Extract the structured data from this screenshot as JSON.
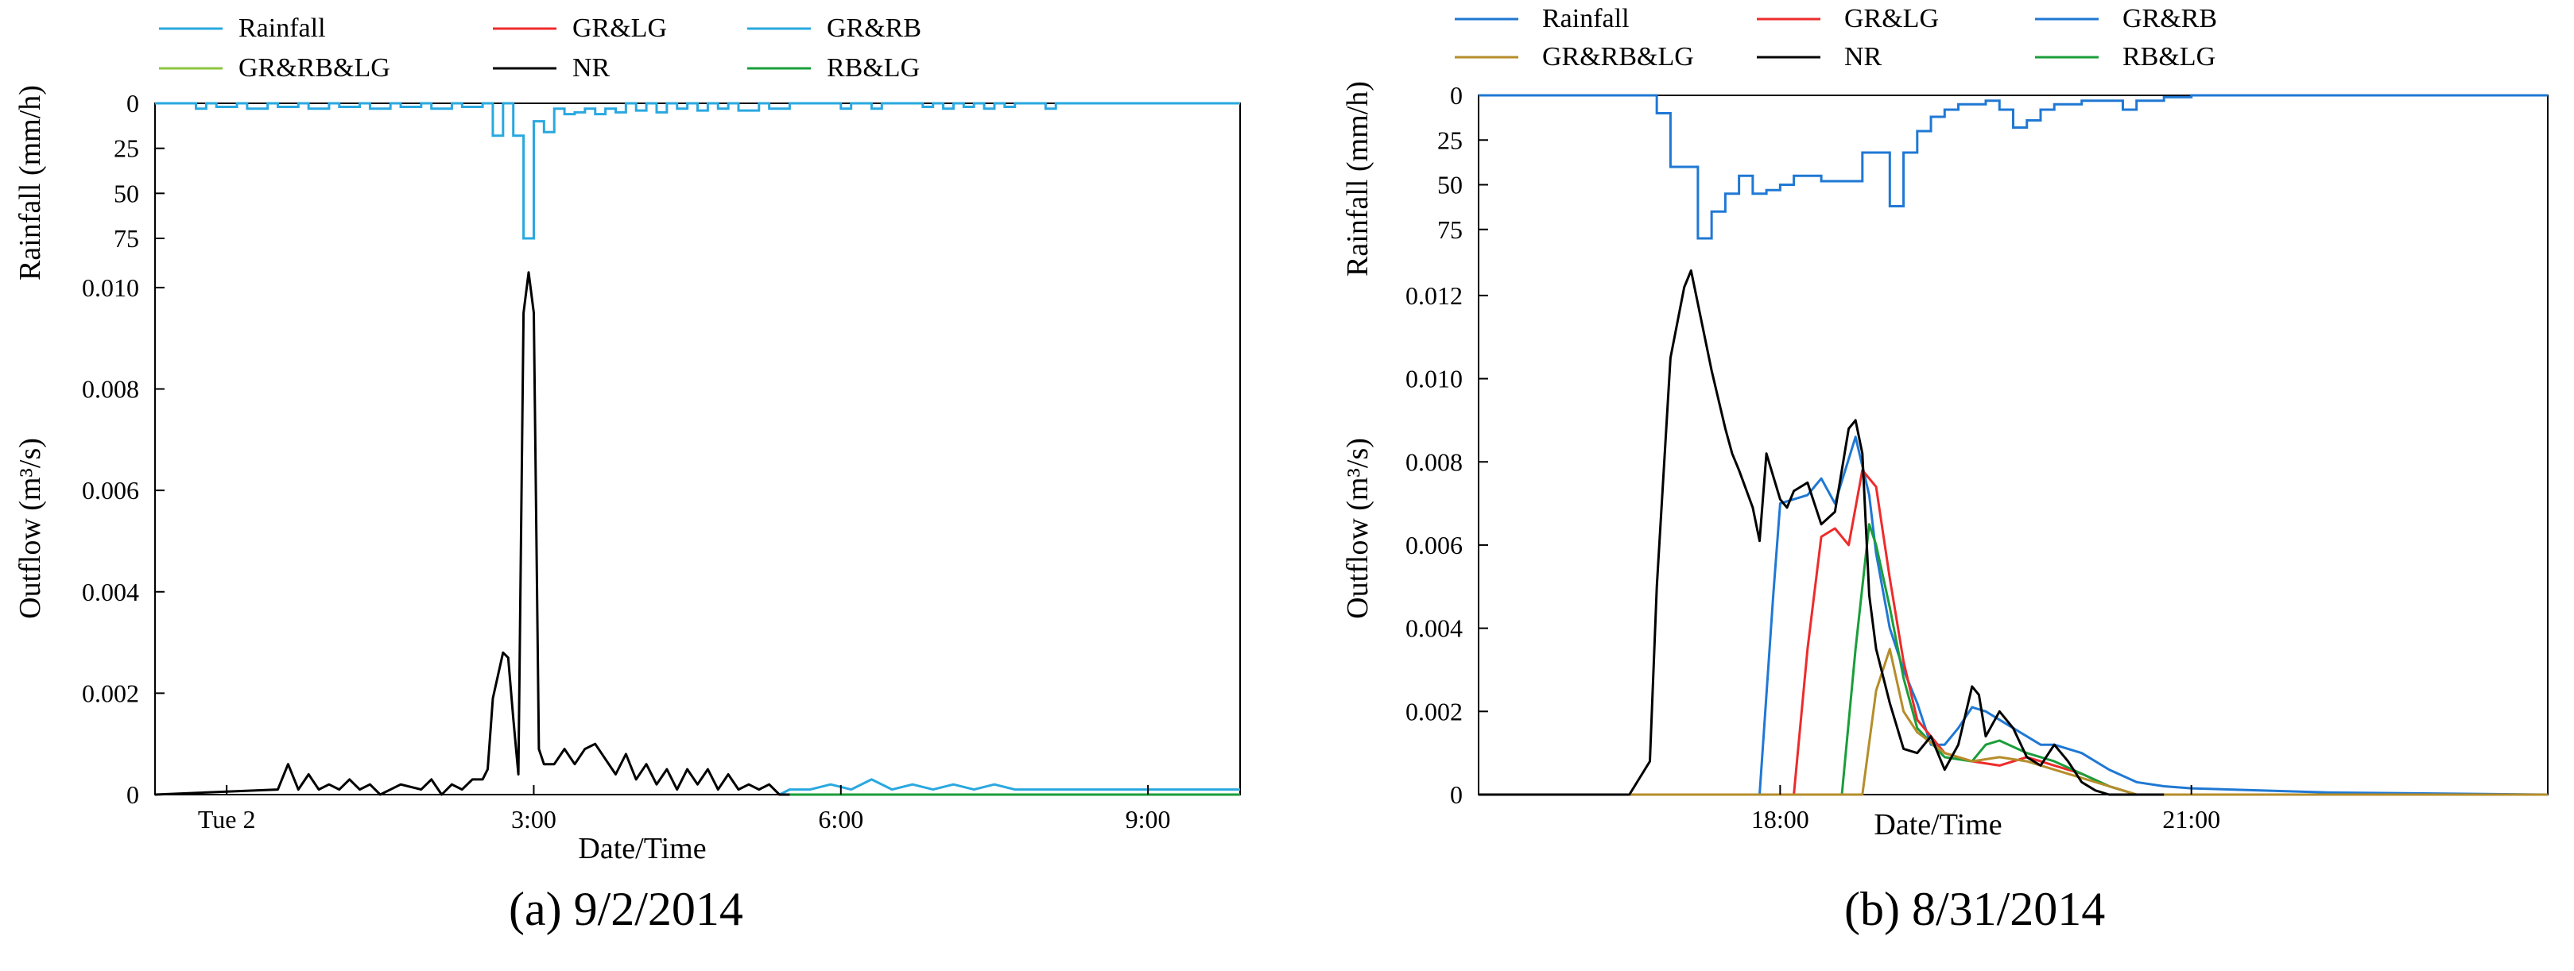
{
  "chart_data": [
    {
      "type": "line",
      "caption": "(a) 9/2/2014",
      "xlabel": "Date/Time",
      "x_ticks": [
        "Tue 2",
        "3:00",
        "6:00",
        "9:00"
      ],
      "x_tick_hours": [
        0,
        3,
        6,
        9
      ],
      "xlim_hours": [
        -0.7,
        9.9
      ],
      "legend": [
        {
          "name": "Rainfall",
          "color": "#29a8e0"
        },
        {
          "name": "GR&LG",
          "color": "#ee2b2b"
        },
        {
          "name": "GR&RB",
          "color": "#29a8e0"
        },
        {
          "name": "GR&RB&LG",
          "color": "#8cc63f"
        },
        {
          "name": "NR",
          "color": "#000000"
        },
        {
          "name": "RB&LG",
          "color": "#1a9e3a"
        }
      ],
      "rainfall": {
        "ylabel": "Rainfall (mm/h)",
        "yticks": [
          0,
          25,
          50,
          75
        ],
        "ylim": [
          0,
          75
        ],
        "inverted": true,
        "color": "#29a8e0",
        "x_hours": [
          -0.7,
          -0.3,
          -0.2,
          -0.1,
          0.1,
          0.2,
          0.4,
          0.5,
          0.7,
          0.8,
          1.0,
          1.1,
          1.3,
          1.4,
          1.6,
          1.7,
          1.9,
          2.0,
          2.2,
          2.3,
          2.5,
          2.6,
          2.7,
          2.8,
          2.9,
          3.0,
          3.1,
          3.2,
          3.3,
          3.4,
          3.5,
          3.6,
          3.7,
          3.8,
          3.9,
          4.0,
          4.1,
          4.2,
          4.3,
          4.4,
          4.5,
          4.6,
          4.7,
          4.8,
          4.9,
          5.0,
          5.2,
          5.3,
          5.5,
          5.6,
          6.0,
          6.1,
          6.3,
          6.4,
          6.8,
          6.9,
          7.0,
          7.1,
          7.2,
          7.3,
          7.4,
          7.5,
          7.6,
          7.7,
          8.0,
          8.1,
          9.9
        ],
        "values": [
          0,
          3,
          0,
          2,
          0,
          3,
          0,
          2,
          0,
          3,
          0,
          2,
          0,
          3,
          0,
          2,
          0,
          3,
          0,
          2,
          0,
          18,
          0,
          18,
          75,
          10,
          16,
          3,
          6,
          5,
          3,
          6,
          3,
          5,
          0,
          4,
          0,
          5,
          0,
          3,
          0,
          4,
          0,
          3,
          0,
          4,
          0,
          3,
          0,
          0,
          3,
          0,
          3,
          0,
          2,
          0,
          3,
          0,
          2,
          0,
          3,
          0,
          2,
          0,
          3,
          0,
          0
        ]
      },
      "outflow": {
        "ylabel": "Outflow (m³/s)",
        "yticks": [
          0,
          0.002,
          0.004,
          0.006,
          0.008,
          0.01
        ],
        "ylim": [
          0,
          0.0105
        ],
        "series": [
          {
            "name": "NR",
            "color": "#000000",
            "x_hours": [
              -0.7,
              0.5,
              0.6,
              0.7,
              0.8,
              0.9,
              1.0,
              1.1,
              1.2,
              1.3,
              1.4,
              1.5,
              1.7,
              1.9,
              2.0,
              2.1,
              2.2,
              2.3,
              2.4,
              2.5,
              2.55,
              2.6,
              2.7,
              2.75,
              2.8,
              2.85,
              2.9,
              2.95,
              3.0,
              3.05,
              3.1,
              3.2,
              3.3,
              3.4,
              3.5,
              3.6,
              3.7,
              3.8,
              3.9,
              4.0,
              4.1,
              4.2,
              4.3,
              4.4,
              4.5,
              4.6,
              4.7,
              4.8,
              4.9,
              5.0,
              5.1,
              5.2,
              5.3,
              5.4,
              5.5
            ],
            "values": [
              0,
              0.0001,
              0.0006,
              0.0001,
              0.0004,
              0.0001,
              0.0002,
              0.0001,
              0.0003,
              0.0001,
              0.0002,
              0,
              0.0002,
              0.0001,
              0.0003,
              0,
              0.0002,
              0.0001,
              0.0003,
              0.0003,
              0.0005,
              0.0019,
              0.0028,
              0.0027,
              0.0015,
              0.0004,
              0.0095,
              0.0103,
              0.0095,
              0.0009,
              0.0006,
              0.0006,
              0.0009,
              0.0006,
              0.0009,
              0.001,
              0.0007,
              0.0004,
              0.0008,
              0.0003,
              0.0006,
              0.0002,
              0.0005,
              0.0001,
              0.0005,
              0.0002,
              0.0005,
              0.0001,
              0.0004,
              0.0001,
              0.0002,
              0.0001,
              0.0002,
              0,
              0
            ]
          },
          {
            "name": "GR&RB",
            "color": "#29a8e0",
            "x_hours": [
              5.4,
              5.5,
              5.7,
              5.9,
              6.1,
              6.3,
              6.5,
              6.7,
              6.9,
              7.1,
              7.3,
              7.5,
              7.7,
              7.9,
              8.1,
              9.9
            ],
            "values": [
              0,
              0.0001,
              0.0001,
              0.0002,
              0.0001,
              0.0003,
              0.0001,
              0.0002,
              0.0001,
              0.0002,
              0.0001,
              0.0002,
              0.0001,
              0.0001,
              0.0001,
              0.0001
            ]
          },
          {
            "name": "RB&LG",
            "color": "#1a9e3a",
            "x_hours": [
              5.4,
              9.9
            ],
            "values": [
              0,
              0
            ]
          }
        ]
      }
    },
    {
      "type": "line",
      "caption": "(b) 8/31/2014",
      "xlabel": "Date/Time",
      "x_ticks": [
        "18:00",
        "21:00"
      ],
      "x_tick_hours": [
        18,
        21
      ],
      "xlim_hours": [
        15.8,
        23.6
      ],
      "legend": [
        {
          "name": "Rainfall",
          "color": "#1f78d4"
        },
        {
          "name": "GR&LG",
          "color": "#ee2b2b"
        },
        {
          "name": "GR&RB",
          "color": "#1f78d4"
        },
        {
          "name": "GR&RB&LG",
          "color": "#b58d2a"
        },
        {
          "name": "NR",
          "color": "#000000"
        },
        {
          "name": "RB&LG",
          "color": "#1a9e3a"
        }
      ],
      "rainfall": {
        "ylabel": "Rainfall (mm/h)",
        "yticks": [
          0,
          25,
          50,
          75
        ],
        "ylim": [
          0,
          80
        ],
        "inverted": true,
        "color": "#1f78d4",
        "x_hours": [
          15.8,
          17.1,
          17.2,
          17.4,
          17.5,
          17.6,
          17.7,
          17.8,
          17.9,
          18.0,
          18.1,
          18.3,
          18.6,
          18.8,
          18.9,
          19.0,
          19.1,
          19.2,
          19.3,
          19.5,
          19.6,
          19.7,
          19.8,
          19.9,
          20.0,
          20.2,
          20.3,
          20.5,
          20.6,
          20.8,
          21.0,
          23.6
        ],
        "values": [
          0,
          10,
          40,
          80,
          65,
          55,
          45,
          55,
          53,
          50,
          45,
          48,
          32,
          62,
          32,
          20,
          12,
          8,
          5,
          3,
          8,
          18,
          14,
          8,
          5,
          3,
          3,
          8,
          3,
          1,
          0,
          0
        ]
      },
      "outflow": {
        "ylabel": "Outflow (m³/s)",
        "yticks": [
          0,
          0.002,
          0.004,
          0.006,
          0.008,
          0.01,
          0.012
        ],
        "ylim": [
          0,
          0.0128
        ],
        "series": [
          {
            "name": "NR",
            "color": "#000000",
            "x_hours": [
              15.8,
              16.9,
              17.05,
              17.1,
              17.2,
              17.3,
              17.35,
              17.4,
              17.5,
              17.6,
              17.65,
              17.7,
              17.8,
              17.85,
              17.9,
              18.0,
              18.05,
              18.1,
              18.2,
              18.3,
              18.4,
              18.5,
              18.55,
              18.6,
              18.65,
              18.7,
              18.8,
              18.9,
              19.0,
              19.1,
              19.2,
              19.3,
              19.4,
              19.45,
              19.5,
              19.6,
              19.7,
              19.8,
              19.9,
              20.0,
              20.1,
              20.2,
              20.3,
              20.4,
              20.6,
              20.8
            ],
            "values": [
              0,
              0,
              0.0008,
              0.005,
              0.0105,
              0.0122,
              0.0126,
              0.0118,
              0.0102,
              0.0088,
              0.0082,
              0.0078,
              0.0069,
              0.0061,
              0.0082,
              0.0071,
              0.0069,
              0.0073,
              0.0075,
              0.0065,
              0.0068,
              0.0088,
              0.009,
              0.0082,
              0.0048,
              0.0035,
              0.0022,
              0.0011,
              0.001,
              0.0014,
              0.0006,
              0.0012,
              0.0026,
              0.0024,
              0.0014,
              0.002,
              0.0016,
              0.0009,
              0.0007,
              0.0012,
              0.0008,
              0.0003,
              0.0001,
              0,
              0,
              0
            ]
          },
          {
            "name": "GR&RB",
            "color": "#1f78d4",
            "x_hours": [
              15.8,
              17.85,
              17.95,
              18.0,
              18.2,
              18.3,
              18.4,
              18.55,
              18.65,
              18.7,
              18.8,
              18.9,
              19.0,
              19.1,
              19.2,
              19.3,
              19.4,
              19.5,
              19.6,
              19.7,
              19.8,
              19.9,
              20.0,
              20.2,
              20.4,
              20.6,
              20.8,
              21.0,
              21.5,
              22.0,
              23.6
            ],
            "values": [
              0,
              0,
              0.0048,
              0.007,
              0.0072,
              0.0076,
              0.007,
              0.0086,
              0.0072,
              0.0058,
              0.004,
              0.003,
              0.0022,
              0.0012,
              0.0012,
              0.0016,
              0.0021,
              0.002,
              0.0018,
              0.0016,
              0.0014,
              0.0012,
              0.0012,
              0.001,
              0.0006,
              0.0003,
              0.0002,
              0.00015,
              0.0001,
              5e-05,
              0
            ]
          },
          {
            "name": "GR&LG",
            "color": "#ee2b2b",
            "x_hours": [
              15.8,
              18.1,
              18.2,
              18.3,
              18.4,
              18.5,
              18.6,
              18.7,
              18.8,
              18.9,
              19.0,
              19.2,
              19.4,
              19.6,
              19.8,
              19.9,
              20.0,
              20.2,
              20.4,
              20.6,
              23.6
            ],
            "values": [
              0,
              0,
              0.0035,
              0.0062,
              0.0064,
              0.006,
              0.0078,
              0.0074,
              0.0052,
              0.0032,
              0.0018,
              0.001,
              0.0008,
              0.0007,
              0.0009,
              0.0008,
              0.0007,
              0.0005,
              0.0002,
              0,
              0
            ]
          },
          {
            "name": "RB&LG",
            "color": "#1a9e3a",
            "x_hours": [
              15.8,
              18.45,
              18.55,
              18.65,
              18.7,
              18.8,
              18.9,
              19.0,
              19.2,
              19.4,
              19.5,
              19.6,
              19.8,
              20.0,
              20.2,
              20.4,
              20.6,
              23.6
            ],
            "values": [
              0,
              0,
              0.0035,
              0.0065,
              0.006,
              0.0045,
              0.0028,
              0.0016,
              0.0009,
              0.0008,
              0.0012,
              0.0013,
              0.001,
              0.0008,
              0.0005,
              0.0002,
              0,
              0
            ]
          },
          {
            "name": "GR&RB&LG",
            "color": "#b58d2a",
            "x_hours": [
              15.8,
              18.6,
              18.7,
              18.8,
              18.9,
              19.0,
              19.2,
              19.4,
              19.6,
              19.8,
              20.0,
              20.2,
              20.4,
              20.6,
              23.6
            ],
            "values": [
              0,
              0,
              0.0025,
              0.0035,
              0.002,
              0.0015,
              0.001,
              0.0008,
              0.0009,
              0.0008,
              0.0006,
              0.0004,
              0.0002,
              0,
              0
            ]
          }
        ]
      }
    }
  ]
}
